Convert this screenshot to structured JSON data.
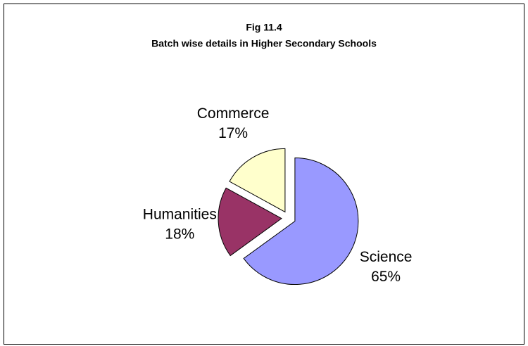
{
  "chart_data": {
    "type": "pie",
    "title": [
      "Fig 11.4",
      "Batch wise details in Higher Secondary Schools"
    ],
    "categories": [
      "Science",
      "Humanities",
      "Commerce"
    ],
    "values": [
      65,
      18,
      17
    ],
    "value_labels": [
      "65%",
      "18%",
      "17%"
    ],
    "colors": [
      "#9999ff",
      "#993366",
      "#ffffcc"
    ],
    "exploded": true
  }
}
